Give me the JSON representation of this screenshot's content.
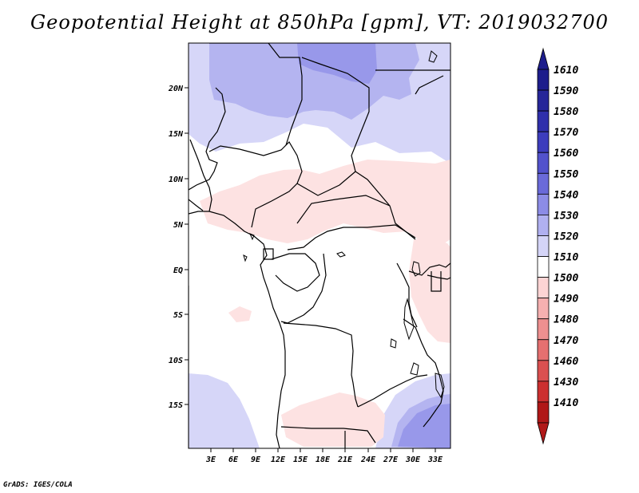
{
  "title": "Geopotential Height at 850hPa [gpm], VT: 2019032700",
  "credit": "GrADS: IGES/COLA",
  "map": {
    "lat_labels": [
      "20N",
      "15N",
      "10N",
      "5N",
      "EQ",
      "5S",
      "10S",
      "15S"
    ],
    "lon_labels": [
      "3E",
      "6E",
      "9E",
      "12E",
      "15E",
      "18E",
      "21E",
      "24E",
      "27E",
      "30E",
      "33E"
    ]
  },
  "colorbar": {
    "levels": [
      "1610",
      "1590",
      "1580",
      "1570",
      "1560",
      "1550",
      "1540",
      "1530",
      "1520",
      "1510",
      "1500",
      "1490",
      "1480",
      "1470",
      "1460",
      "1430",
      "1410"
    ],
    "colors": [
      "#1d1d8c",
      "#262699",
      "#2f2fab",
      "#3d3dbd",
      "#5252cc",
      "#6a6ad9",
      "#8c8ce6",
      "#b0b0f0",
      "#d4d4f7",
      "#ffffff",
      "#fcd4d4",
      "#f5b0b0",
      "#ee9090",
      "#e57070",
      "#da5050",
      "#cc3030",
      "#b01818"
    ]
  }
}
